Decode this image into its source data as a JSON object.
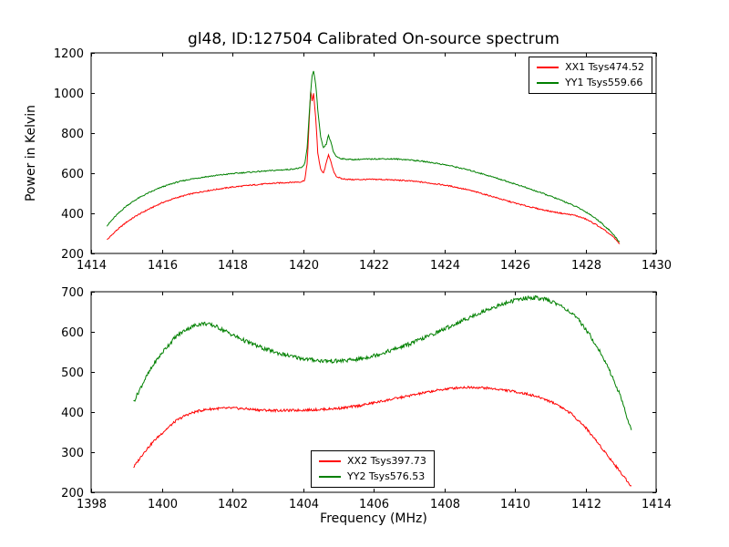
{
  "chart_data": [
    {
      "type": "line",
      "title": "gl48, ID:127504 Calibrated On-source spectrum",
      "xlabel": "",
      "ylabel": "Power in Kelvin",
      "xlim": [
        1414,
        1430
      ],
      "ylim": [
        200,
        1200
      ],
      "xticks": [
        1414,
        1416,
        1418,
        1420,
        1422,
        1424,
        1426,
        1428,
        1430
      ],
      "yticks": [
        200,
        400,
        600,
        800,
        1000,
        1200
      ],
      "grid": false,
      "legend_position": "upper right",
      "series": [
        {
          "name": "XX1 Tsys474.52",
          "color": "#ff0000",
          "noise": 3,
          "points": [
            [
              1414.45,
              268
            ],
            [
              1414.7,
              312
            ],
            [
              1415.0,
              356
            ],
            [
              1415.3,
              390
            ],
            [
              1415.6,
              418
            ],
            [
              1416.0,
              452
            ],
            [
              1416.4,
              477
            ],
            [
              1416.8,
              496
            ],
            [
              1417.2,
              510
            ],
            [
              1417.6,
              521
            ],
            [
              1418.0,
              531
            ],
            [
              1418.4,
              538
            ],
            [
              1418.8,
              545
            ],
            [
              1419.2,
              550
            ],
            [
              1419.6,
              554
            ],
            [
              1419.95,
              557
            ],
            [
              1420.05,
              566
            ],
            [
              1420.12,
              650
            ],
            [
              1420.18,
              880
            ],
            [
              1420.22,
              1015
            ],
            [
              1420.26,
              958
            ],
            [
              1420.3,
              998
            ],
            [
              1420.36,
              878
            ],
            [
              1420.42,
              700
            ],
            [
              1420.5,
              618
            ],
            [
              1420.58,
              600
            ],
            [
              1420.66,
              650
            ],
            [
              1420.72,
              695
            ],
            [
              1420.78,
              662
            ],
            [
              1420.86,
              612
            ],
            [
              1420.95,
              583
            ],
            [
              1421.1,
              572
            ],
            [
              1421.4,
              568
            ],
            [
              1421.8,
              569
            ],
            [
              1422.2,
              569
            ],
            [
              1422.6,
              566
            ],
            [
              1423.0,
              562
            ],
            [
              1423.4,
              555
            ],
            [
              1423.8,
              546
            ],
            [
              1424.2,
              535
            ],
            [
              1424.6,
              520
            ],
            [
              1425.0,
              502
            ],
            [
              1425.4,
              482
            ],
            [
              1425.8,
              461
            ],
            [
              1426.2,
              442
            ],
            [
              1426.6,
              425
            ],
            [
              1427.0,
              410
            ],
            [
              1427.4,
              398
            ],
            [
              1427.7,
              390
            ],
            [
              1428.0,
              372
            ],
            [
              1428.3,
              344
            ],
            [
              1428.6,
              308
            ],
            [
              1428.8,
              280
            ],
            [
              1428.97,
              248
            ]
          ]
        },
        {
          "name": "YY1 Tsys559.66",
          "color": "#008000",
          "noise": 3,
          "points": [
            [
              1414.45,
              338
            ],
            [
              1414.7,
              388
            ],
            [
              1415.0,
              437
            ],
            [
              1415.3,
              472
            ],
            [
              1415.6,
              500
            ],
            [
              1416.0,
              531
            ],
            [
              1416.4,
              554
            ],
            [
              1416.8,
              570
            ],
            [
              1417.2,
              581
            ],
            [
              1417.6,
              590
            ],
            [
              1418.0,
              598
            ],
            [
              1418.4,
              604
            ],
            [
              1418.8,
              609
            ],
            [
              1419.2,
              614
            ],
            [
              1419.6,
              619
            ],
            [
              1419.95,
              626
            ],
            [
              1420.05,
              645
            ],
            [
              1420.12,
              730
            ],
            [
              1420.2,
              965
            ],
            [
              1420.26,
              1090
            ],
            [
              1420.3,
              1108
            ],
            [
              1420.36,
              1045
            ],
            [
              1420.42,
              915
            ],
            [
              1420.5,
              778
            ],
            [
              1420.58,
              725
            ],
            [
              1420.66,
              745
            ],
            [
              1420.72,
              790
            ],
            [
              1420.78,
              760
            ],
            [
              1420.86,
              708
            ],
            [
              1420.95,
              682
            ],
            [
              1421.1,
              672
            ],
            [
              1421.4,
              668
            ],
            [
              1421.8,
              670
            ],
            [
              1422.2,
              672
            ],
            [
              1422.6,
              671
            ],
            [
              1423.0,
              667
            ],
            [
              1423.4,
              659
            ],
            [
              1423.8,
              649
            ],
            [
              1424.2,
              636
            ],
            [
              1424.6,
              620
            ],
            [
              1425.0,
              601
            ],
            [
              1425.4,
              580
            ],
            [
              1425.8,
              558
            ],
            [
              1426.2,
              535
            ],
            [
              1426.6,
              511
            ],
            [
              1427.0,
              486
            ],
            [
              1427.4,
              459
            ],
            [
              1427.8,
              428
            ],
            [
              1428.1,
              398
            ],
            [
              1428.4,
              360
            ],
            [
              1428.7,
              312
            ],
            [
              1428.97,
              256
            ]
          ]
        }
      ]
    },
    {
      "type": "line",
      "title": "",
      "xlabel": "Frequency (MHz)",
      "ylabel": "",
      "xlim": [
        1398,
        1414
      ],
      "ylim": [
        200,
        700
      ],
      "xticks": [
        1398,
        1400,
        1402,
        1404,
        1406,
        1408,
        1410,
        1412,
        1414
      ],
      "yticks": [
        200,
        300,
        400,
        500,
        600,
        700
      ],
      "grid": false,
      "legend_position": "lower center",
      "series": [
        {
          "name": "XX2 Tsys397.73",
          "color": "#ff0000",
          "noise": 3,
          "points": [
            [
              1399.2,
              262
            ],
            [
              1399.5,
              300
            ],
            [
              1399.8,
              330
            ],
            [
              1400.1,
              355
            ],
            [
              1400.4,
              378
            ],
            [
              1400.7,
              393
            ],
            [
              1401.0,
              402
            ],
            [
              1401.3,
              407
            ],
            [
              1401.6,
              409
            ],
            [
              1402.0,
              410
            ],
            [
              1402.4,
              408
            ],
            [
              1402.8,
              405
            ],
            [
              1403.2,
              404
            ],
            [
              1403.6,
              404
            ],
            [
              1404.0,
              405
            ],
            [
              1404.4,
              406
            ],
            [
              1404.8,
              408
            ],
            [
              1405.2,
              411
            ],
            [
              1405.6,
              416
            ],
            [
              1406.0,
              423
            ],
            [
              1406.4,
              430
            ],
            [
              1406.8,
              437
            ],
            [
              1407.2,
              444
            ],
            [
              1407.6,
              451
            ],
            [
              1408.0,
              457
            ],
            [
              1408.4,
              461
            ],
            [
              1408.8,
              462
            ],
            [
              1409.2,
              460
            ],
            [
              1409.6,
              456
            ],
            [
              1410.0,
              451
            ],
            [
              1410.4,
              444
            ],
            [
              1410.8,
              434
            ],
            [
              1411.2,
              419
            ],
            [
              1411.6,
              396
            ],
            [
              1412.0,
              362
            ],
            [
              1412.4,
              318
            ],
            [
              1412.8,
              272
            ],
            [
              1413.1,
              238
            ],
            [
              1413.3,
              215
            ]
          ]
        },
        {
          "name": "YY2 Tsys576.53",
          "color": "#008000",
          "noise": 5,
          "points": [
            [
              1399.2,
              425
            ],
            [
              1399.5,
              478
            ],
            [
              1399.8,
              523
            ],
            [
              1400.1,
              558
            ],
            [
              1400.4,
              588
            ],
            [
              1400.7,
              607
            ],
            [
              1401.0,
              618
            ],
            [
              1401.2,
              621
            ],
            [
              1401.5,
              615
            ],
            [
              1401.8,
              602
            ],
            [
              1402.1,
              588
            ],
            [
              1402.5,
              572
            ],
            [
              1402.9,
              558
            ],
            [
              1403.3,
              547
            ],
            [
              1403.7,
              538
            ],
            [
              1404.1,
              532
            ],
            [
              1404.5,
              528
            ],
            [
              1404.9,
              527
            ],
            [
              1405.3,
              529
            ],
            [
              1405.7,
              534
            ],
            [
              1406.1,
              543
            ],
            [
              1406.5,
              554
            ],
            [
              1406.9,
              566
            ],
            [
              1407.3,
              580
            ],
            [
              1407.7,
              595
            ],
            [
              1408.1,
              611
            ],
            [
              1408.5,
              627
            ],
            [
              1408.9,
              643
            ],
            [
              1409.3,
              658
            ],
            [
              1409.7,
              670
            ],
            [
              1410.0,
              679
            ],
            [
              1410.3,
              684
            ],
            [
              1410.6,
              685
            ],
            [
              1410.9,
              680
            ],
            [
              1411.2,
              670
            ],
            [
              1411.5,
              654
            ],
            [
              1411.8,
              630
            ],
            [
              1412.1,
              596
            ],
            [
              1412.4,
              552
            ],
            [
              1412.7,
              500
            ],
            [
              1413.0,
              438
            ],
            [
              1413.3,
              352
            ]
          ]
        }
      ]
    }
  ]
}
